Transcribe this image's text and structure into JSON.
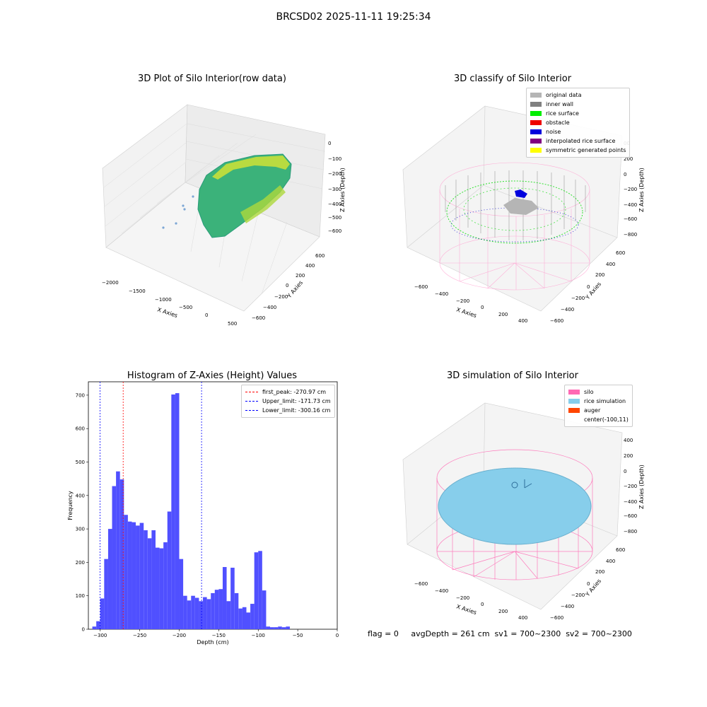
{
  "suptitle": "BRCSD02 2025-11-11 19:25:34",
  "panels": {
    "raw": {
      "title": "3D Plot of Silo Interior(row data)",
      "xlabel": "X Axies",
      "ylabel": "Y Axies",
      "zlabel": "Z Axies (Depth)",
      "xticks": [
        "−2000",
        "−1500",
        "−1000",
        "−500",
        "0",
        "500"
      ],
      "yticks": [
        "−600",
        "−400",
        "−200",
        "0",
        "200",
        "400",
        "600"
      ],
      "zticks": [
        "0",
        "−100",
        "−200",
        "−300",
        "−400",
        "−500",
        "−600"
      ]
    },
    "classify": {
      "title": "3D classify of Silo Interior",
      "xlabel": "X Axies",
      "ylabel": "Y Axies",
      "zlabel": "Z Axies (Depth)",
      "xticks": [
        "−600",
        "−400",
        "−200",
        "0",
        "200",
        "400"
      ],
      "yticks": [
        "−600",
        "−400",
        "−200",
        "0",
        "200",
        "400",
        "600"
      ],
      "zticks": [
        "200",
        "0",
        "−200",
        "−400",
        "−600",
        "−800"
      ],
      "zticks_partial": "00",
      "legend": [
        {
          "label": "original data",
          "color": "#b5b5b5"
        },
        {
          "label": "inner wall",
          "color": "#808080"
        },
        {
          "label": "rice surface",
          "color": "#00ee00"
        },
        {
          "label": "obstacle",
          "color": "#ee0000"
        },
        {
          "label": "noise",
          "color": "#0000dd"
        },
        {
          "label": "interpolated rice surface",
          "color": "#800080"
        },
        {
          "label": "symmetric generated points",
          "color": "#ffff00"
        }
      ]
    },
    "simulation": {
      "title": "3D simulation of Silo Interior",
      "xlabel": "X Axies",
      "ylabel": "Y Axies",
      "zlabel": "Z Axies (Depth)",
      "xticks": [
        "−600",
        "−400",
        "−200",
        "0",
        "200",
        "400"
      ],
      "yticks": [
        "−600",
        "−400",
        "−200",
        "0",
        "200",
        "400",
        "600"
      ],
      "zticks": [
        "400",
        "200",
        "0",
        "−200",
        "−400",
        "−600",
        "−800"
      ],
      "legend": [
        {
          "label": "silo",
          "color": "#ff69b4"
        },
        {
          "label": "rice simulation",
          "color": "#87ceeb"
        },
        {
          "label": "auger",
          "color": "#ff4500"
        },
        {
          "label": "center(-100,11)",
          "color": ""
        }
      ]
    }
  },
  "chart_data": {
    "type": "bar",
    "title": "Histogram of Z-Axies (Height) Values",
    "xlabel": "Depth (cm)",
    "ylabel": "Frequency",
    "xlim": [
      -315,
      0
    ],
    "ylim": [
      0,
      740
    ],
    "xticks": [
      -300,
      -250,
      -200,
      -150,
      -100,
      -50,
      0
    ],
    "yticks": [
      0,
      100,
      200,
      300,
      400,
      500,
      600,
      700
    ],
    "tick_labels_x": [
      "−300",
      "−250",
      "−200",
      "−150",
      "−100",
      "−50",
      "0"
    ],
    "tick_labels_y": [
      "0",
      "100",
      "200",
      "300",
      "400",
      "500",
      "600",
      "700"
    ],
    "bin_width": 5,
    "bin_starts": [
      -310,
      -305,
      -300,
      -295,
      -290,
      -285,
      -280,
      -275,
      -270,
      -265,
      -260,
      -255,
      -250,
      -245,
      -240,
      -235,
      -230,
      -225,
      -220,
      -215,
      -210,
      -205,
      -200,
      -195,
      -190,
      -185,
      -180,
      -175,
      -170,
      -165,
      -160,
      -155,
      -150,
      -145,
      -140,
      -135,
      -130,
      -125,
      -120,
      -115,
      -110,
      -105,
      -100,
      -95,
      -90,
      -85,
      -80,
      -75,
      -70,
      -65,
      -60,
      -55,
      -50,
      -45,
      -40,
      -35,
      -30,
      -25,
      -20,
      -15
    ],
    "counts": [
      8,
      24,
      92,
      210,
      300,
      428,
      472,
      448,
      342,
      322,
      320,
      310,
      318,
      296,
      272,
      296,
      244,
      242,
      260,
      352,
      702,
      706,
      210,
      100,
      86,
      100,
      94,
      84,
      96,
      90,
      108,
      118,
      120,
      186,
      84,
      184,
      108,
      62,
      66,
      50,
      76,
      230,
      234,
      116,
      8,
      6,
      6,
      8,
      6,
      8,
      0,
      0,
      0,
      0,
      0,
      0,
      0,
      0,
      0,
      0
    ],
    "vlines": [
      {
        "label": "first_peak: -270.97 cm",
        "x": -270.97,
        "color": "#ff0000"
      },
      {
        "label": "Upper_limit: -171.73 cm",
        "x": -171.73,
        "color": "#0000ff"
      },
      {
        "label": "Lower_limit: -300.16 cm",
        "x": -300.16,
        "color": "#0000ff"
      }
    ],
    "bar_color": "#5050ff"
  },
  "status": "flag = 0     avgDepth = 261 cm  sv1 = 700~2300  sv2 = 700~2300"
}
